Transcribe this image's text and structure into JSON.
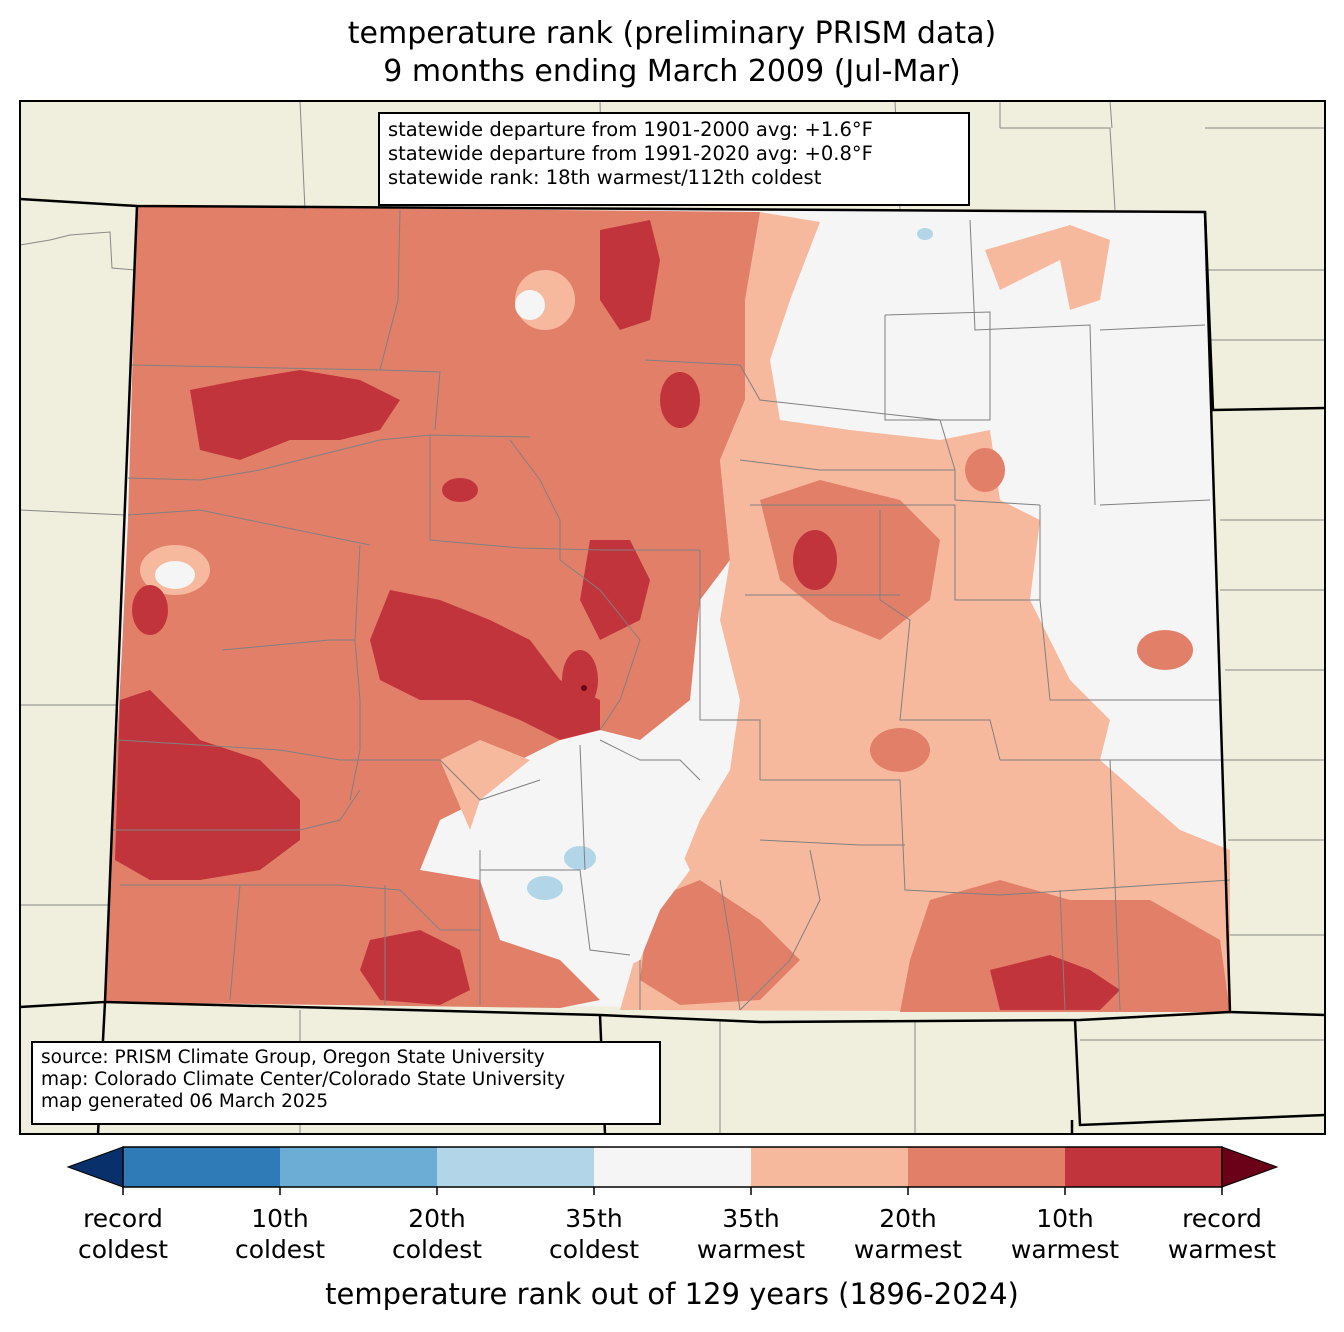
{
  "title": {
    "line1": "temperature rank (preliminary PRISM data)",
    "line2": "9 months ending March 2009 (Jul-Mar)"
  },
  "stats": {
    "dep_1901_2000": "statewide departure from 1901-2000 avg: +1.6°F",
    "dep_1991_2020": "statewide departure from 1991-2020 avg: +0.8°F",
    "rank": "statewide rank: 18th warmest/112th coldest"
  },
  "credits": {
    "source": "source: PRISM Climate Group, Oregon State University",
    "map": "map: Colorado Climate Center/Colorado State University",
    "generated": "map generated 06 March 2025"
  },
  "colors": {
    "record_coldest": "#08306b",
    "10th_coldest": "#2f7bb8",
    "20th_coldest": "#6badd5",
    "35th_coldest": "#b3d5e8",
    "near_normal": "#f5f5f5",
    "35th_warmest": "#f7b99e",
    "20th_warmest": "#e27f69",
    "10th_warmest": "#c2343b",
    "record_warmest": "#6b0019",
    "land": "#f0eedc"
  },
  "colorbar": {
    "title": "temperature rank out of 129 years (1896-2024)",
    "labels": [
      {
        "line1": "record",
        "line2": "coldest"
      },
      {
        "line1": "10th",
        "line2": "coldest"
      },
      {
        "line1": "20th",
        "line2": "coldest"
      },
      {
        "line1": "35th",
        "line2": "coldest"
      },
      {
        "line1": "35th",
        "line2": "warmest"
      },
      {
        "line1": "20th",
        "line2": "warmest"
      },
      {
        "line1": "10th",
        "line2": "warmest"
      },
      {
        "line1": "record",
        "line2": "warmest"
      }
    ]
  }
}
